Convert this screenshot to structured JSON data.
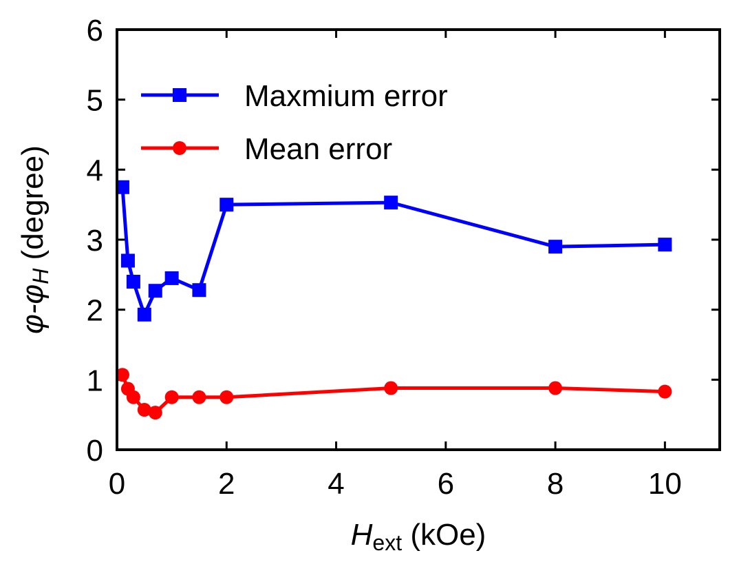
{
  "chart_data": {
    "type": "line",
    "title": "",
    "xlabel": {
      "main": "H",
      "sub": "ext",
      "rest": " (kOe)"
    },
    "ylabel": {
      "main": "φ-φ",
      "sub": "H",
      "rest": " (degree)"
    },
    "xlim": [
      0,
      11
    ],
    "ylim": [
      0,
      6
    ],
    "xticks": [
      0,
      2,
      4,
      6,
      8,
      10
    ],
    "yticks": [
      0,
      1,
      2,
      3,
      4,
      5,
      6
    ],
    "grid": false,
    "legend_position": "top-left",
    "series": [
      {
        "name": "Maxmium error",
        "marker": "square",
        "color": "#0000ff",
        "x": [
          0.1,
          0.2,
          0.3,
          0.5,
          0.7,
          1,
          1.5,
          2,
          5,
          8,
          10
        ],
        "y": [
          3.75,
          2.7,
          2.4,
          1.93,
          2.27,
          2.45,
          2.28,
          3.5,
          3.53,
          2.9,
          2.93
        ]
      },
      {
        "name": "Mean error",
        "marker": "circle",
        "color": "#ff0000",
        "x": [
          0.1,
          0.2,
          0.3,
          0.5,
          0.7,
          1,
          1.5,
          2,
          5,
          8,
          10
        ],
        "y": [
          1.07,
          0.87,
          0.75,
          0.57,
          0.53,
          0.75,
          0.75,
          0.75,
          0.88,
          0.88,
          0.83
        ]
      }
    ]
  }
}
